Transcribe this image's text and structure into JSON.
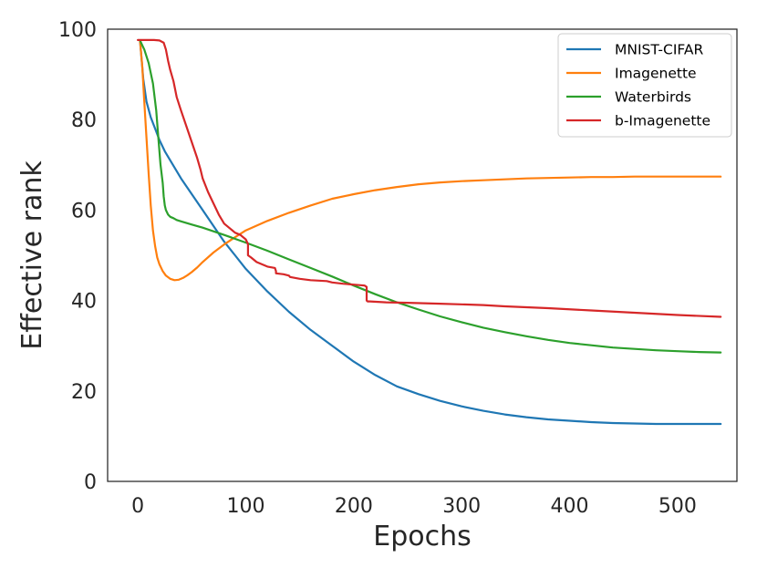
{
  "chart_data": {
    "type": "line",
    "title": "",
    "xlabel": "Epochs",
    "ylabel": "Effective rank",
    "xlim": [
      -28,
      555
    ],
    "ylim": [
      0,
      100
    ],
    "xticks": [
      0,
      100,
      200,
      300,
      400,
      500
    ],
    "yticks": [
      0,
      20,
      40,
      60,
      80,
      100
    ],
    "grid": false,
    "legend_position": "top-right",
    "series": [
      {
        "name": "MNIST-CIFAR",
        "color": "#1f77b4",
        "x": [
          2,
          5,
          8,
          12,
          16,
          20,
          25,
          30,
          40,
          50,
          60,
          70,
          80,
          90,
          100,
          120,
          140,
          160,
          180,
          200,
          220,
          240,
          260,
          280,
          300,
          320,
          340,
          360,
          380,
          400,
          420,
          440,
          460,
          480,
          500,
          520,
          540
        ],
        "y": [
          97.5,
          89,
          84,
          80.5,
          78,
          75.5,
          73,
          71,
          67,
          63.5,
          60,
          56.5,
          53,
          50,
          47,
          42,
          37.5,
          33.5,
          30,
          26.5,
          23.5,
          21,
          19.3,
          17.8,
          16.6,
          15.6,
          14.8,
          14.2,
          13.7,
          13.4,
          13.1,
          12.9,
          12.8,
          12.7,
          12.7,
          12.7,
          12.7
        ]
      },
      {
        "name": "Imagenette",
        "color": "#ff7f0e",
        "x": [
          2,
          4,
          6,
          8,
          10,
          12,
          14,
          16,
          18,
          20,
          23,
          26,
          30,
          34,
          38,
          42,
          46,
          50,
          55,
          60,
          70,
          80,
          90,
          100,
          120,
          140,
          160,
          180,
          200,
          220,
          240,
          260,
          280,
          300,
          320,
          340,
          360,
          380,
          400,
          420,
          440,
          460,
          480,
          500,
          520,
          540
        ],
        "y": [
          97.5,
          92,
          84,
          76,
          68,
          61,
          55.5,
          52,
          49.5,
          48,
          46.5,
          45.5,
          44.8,
          44.5,
          44.6,
          45,
          45.6,
          46.3,
          47.3,
          48.5,
          50.6,
          52.4,
          54,
          55.5,
          57.6,
          59.4,
          61,
          62.5,
          63.5,
          64.4,
          65.1,
          65.7,
          66.1,
          66.4,
          66.6,
          66.8,
          67,
          67.1,
          67.2,
          67.3,
          67.3,
          67.4,
          67.4,
          67.4,
          67.4,
          67.4
        ]
      },
      {
        "name": "Waterbirds",
        "color": "#2ca02c",
        "x": [
          2,
          6,
          10,
          14,
          17,
          19,
          21,
          23,
          24,
          25,
          26,
          27,
          28,
          30,
          33,
          36,
          40,
          50,
          60,
          80,
          100,
          120,
          140,
          160,
          180,
          200,
          220,
          240,
          260,
          280,
          300,
          320,
          340,
          360,
          380,
          400,
          420,
          440,
          460,
          480,
          500,
          520,
          540
        ],
        "y": [
          97.5,
          95.5,
          92.5,
          88,
          82,
          76,
          70,
          66,
          63,
          61,
          60,
          59.5,
          59,
          58.5,
          58.2,
          57.8,
          57.5,
          56.8,
          56.1,
          54.5,
          52.8,
          51,
          49.1,
          47.2,
          45.3,
          43.3,
          41.4,
          39.6,
          38,
          36.5,
          35.2,
          34,
          33,
          32.1,
          31.3,
          30.6,
          30.1,
          29.6,
          29.3,
          29,
          28.8,
          28.6,
          28.5
        ]
      },
      {
        "name": "b-Imagenette",
        "color": "#d62728",
        "x": [
          0,
          5,
          10,
          15,
          20,
          24,
          26,
          28,
          30,
          33,
          36,
          40,
          45,
          50,
          55,
          58,
          60,
          65,
          70,
          75,
          80,
          85,
          90,
          95,
          100,
          102,
          102,
          105,
          110,
          115,
          120,
          127,
          128,
          128,
          135,
          140,
          141,
          150,
          160,
          175,
          180,
          190,
          200,
          210,
          212,
          212,
          213,
          215,
          230,
          250,
          280,
          320,
          340,
          350,
          380,
          420,
          460,
          500,
          540
        ],
        "y": [
          97.6,
          97.6,
          97.6,
          97.6,
          97.5,
          97,
          95.5,
          93,
          91,
          88.5,
          85,
          82,
          78.5,
          75,
          71.5,
          69,
          67,
          64,
          61.5,
          59,
          57,
          56,
          55,
          54.5,
          53.5,
          52.5,
          50,
          49.5,
          48.5,
          48,
          47.5,
          47.2,
          46.5,
          46,
          45.8,
          45.5,
          45.2,
          44.8,
          44.5,
          44.3,
          44,
          43.7,
          43.5,
          43.3,
          43,
          40,
          39.8,
          39.8,
          39.6,
          39.5,
          39.3,
          39,
          38.7,
          38.6,
          38.3,
          37.8,
          37.3,
          36.8,
          36.4
        ]
      }
    ]
  }
}
